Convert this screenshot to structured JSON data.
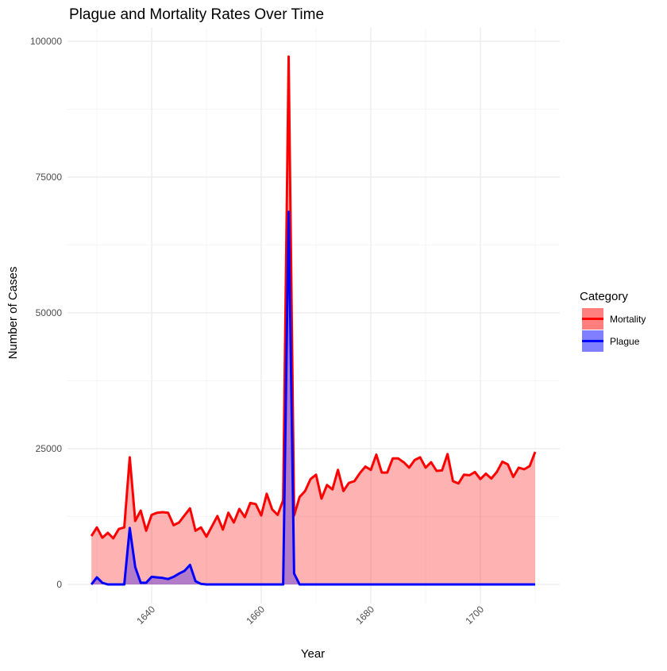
{
  "chart_data": {
    "type": "area",
    "title": "Plague and Mortality Rates Over Time",
    "xlabel": "Year",
    "ylabel": "Number of Cases",
    "xlim": [
      1627,
      1712
    ],
    "ylim": [
      0,
      100000
    ],
    "x_ticks": [
      1640,
      1660,
      1680,
      1700
    ],
    "y_ticks": [
      0,
      25000,
      50000,
      75000,
      100000
    ],
    "grid": true,
    "legend": {
      "title": "Category",
      "position": "right"
    },
    "x": [
      1629,
      1630,
      1631,
      1632,
      1633,
      1634,
      1635,
      1636,
      1637,
      1638,
      1639,
      1640,
      1641,
      1642,
      1643,
      1644,
      1645,
      1646,
      1647,
      1648,
      1649,
      1650,
      1651,
      1652,
      1653,
      1654,
      1655,
      1656,
      1657,
      1658,
      1659,
      1660,
      1661,
      1662,
      1663,
      1664,
      1665,
      1666,
      1667,
      1668,
      1669,
      1670,
      1671,
      1672,
      1673,
      1674,
      1675,
      1676,
      1677,
      1678,
      1679,
      1680,
      1681,
      1682,
      1683,
      1684,
      1685,
      1686,
      1687,
      1688,
      1689,
      1690,
      1691,
      1692,
      1693,
      1694,
      1695,
      1696,
      1697,
      1698,
      1699,
      1700,
      1701,
      1702,
      1703,
      1704,
      1705,
      1706,
      1707,
      1708,
      1709,
      1710
    ],
    "series": [
      {
        "name": "Mortality",
        "color": "#FF0000",
        "values": [
          8900,
          10500,
          8600,
          9500,
          8500,
          10200,
          10500,
          23400,
          11700,
          13600,
          9900,
          12800,
          13200,
          13300,
          13200,
          10900,
          11400,
          12700,
          14000,
          9900,
          10500,
          8800,
          10700,
          12600,
          10100,
          13200,
          11400,
          13900,
          12400,
          15000,
          14800,
          12700,
          16700,
          13800,
          12800,
          15500,
          97200,
          12700,
          16100,
          17200,
          19400,
          20200,
          15800,
          18300,
          17500,
          21100,
          17200,
          18700,
          19000,
          20500,
          21700,
          21100,
          23900,
          20600,
          20600,
          23200,
          23200,
          22500,
          21500,
          22900,
          23400,
          21500,
          22500,
          20900,
          21000,
          24000,
          19000,
          18600,
          20200,
          20100,
          20700,
          19400,
          20400,
          19500,
          20700,
          22600,
          22100,
          19800,
          21500,
          21200,
          21800,
          24400
        ]
      },
      {
        "name": "Plague",
        "color": "#0000FF",
        "values": [
          0,
          1300,
          300,
          0,
          0,
          0,
          0,
          10400,
          3200,
          300,
          300,
          1400,
          1300,
          1200,
          1000,
          1400,
          2000,
          2500,
          3600,
          600,
          100,
          0,
          0,
          0,
          0,
          0,
          0,
          0,
          0,
          0,
          0,
          0,
          0,
          0,
          0,
          0,
          68600,
          2000,
          0,
          0,
          0,
          0,
          0,
          0,
          0,
          0,
          0,
          0,
          0,
          0,
          0,
          0,
          0,
          0,
          0,
          0,
          0,
          0,
          0,
          0,
          0,
          0,
          0,
          0,
          0,
          0,
          0,
          0,
          0,
          0,
          0,
          0,
          0,
          0,
          0,
          0,
          0,
          0,
          0,
          0,
          0,
          0
        ]
      }
    ]
  }
}
